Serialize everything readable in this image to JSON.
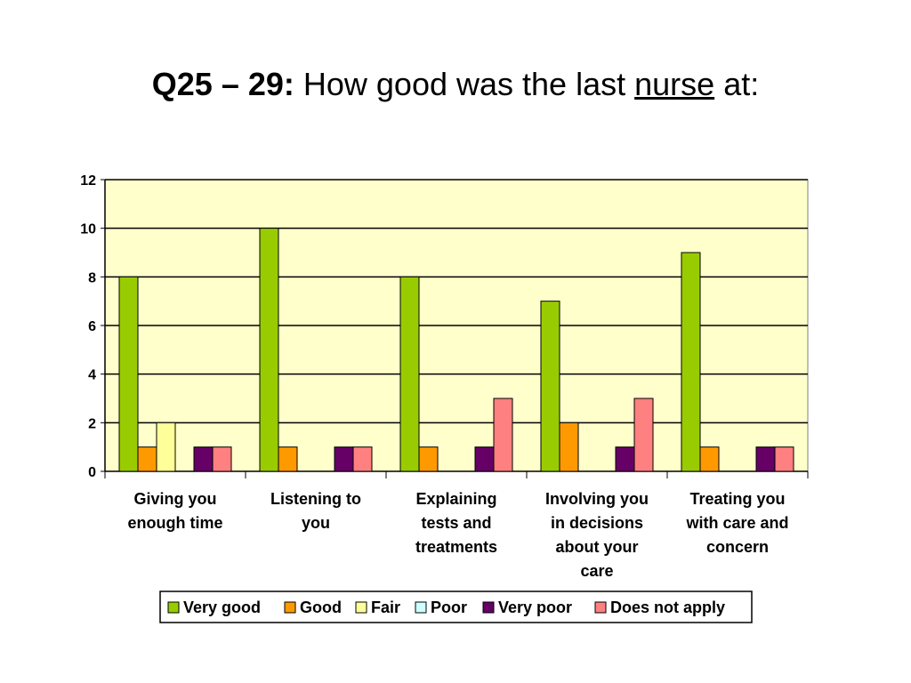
{
  "slide": {
    "title_bold": "Q25 – 29:",
    "title_pre": "How good was the last",
    "title_underlined": "nurse",
    "title_post": "at:"
  },
  "chart_data": {
    "type": "bar",
    "categories": [
      [
        "Giving you",
        "enough time"
      ],
      [
        "Listening to",
        "you"
      ],
      [
        "Explaining",
        "tests and",
        "treatments"
      ],
      [
        "Involving you",
        "in decisions",
        "about your",
        "care"
      ],
      [
        "Treating you",
        "with care and",
        "concern"
      ]
    ],
    "series": [
      {
        "name": "Very good",
        "color": "#99CC00",
        "values": [
          8,
          10,
          8,
          7,
          9
        ]
      },
      {
        "name": "Good",
        "color": "#FF9900",
        "values": [
          1,
          1,
          1,
          2,
          1
        ]
      },
      {
        "name": "Fair",
        "color": "#FFFF99",
        "values": [
          2,
          0,
          0,
          0,
          0
        ]
      },
      {
        "name": "Poor",
        "color": "#CCFFFF",
        "values": [
          0,
          0,
          0,
          0,
          0
        ]
      },
      {
        "name": "Very poor",
        "color": "#660066",
        "values": [
          1,
          1,
          1,
          1,
          1
        ]
      },
      {
        "name": "Does not apply",
        "color": "#FF8080",
        "values": [
          1,
          1,
          3,
          3,
          1
        ]
      }
    ],
    "ylim": [
      0,
      12
    ],
    "yticks": [
      0,
      2,
      4,
      6,
      8,
      10,
      12
    ],
    "grid": true,
    "plot_background": "#FFFFCC",
    "legend_position": "bottom"
  }
}
